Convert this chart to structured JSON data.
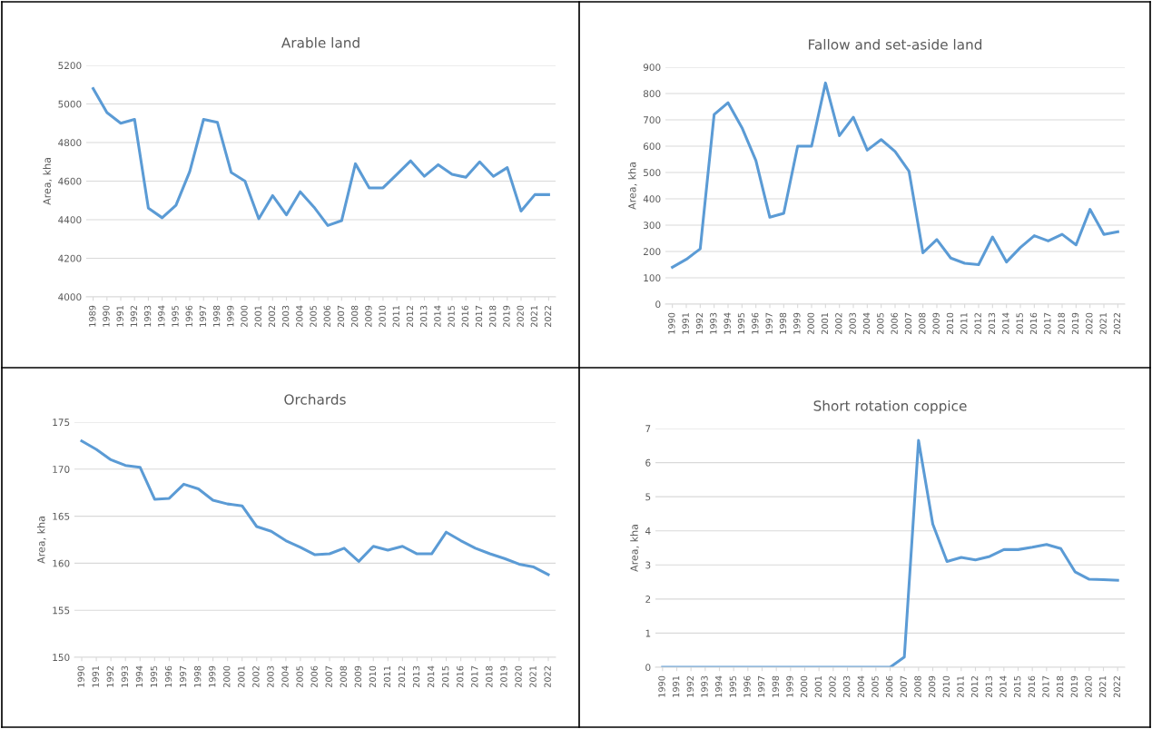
{
  "chart_data": [
    {
      "type": "line",
      "title": "Arable land",
      "ylabel": "Area, kha",
      "ylim": [
        4000,
        5200
      ],
      "yticks": [
        4000,
        4200,
        4400,
        4600,
        4800,
        5000,
        5200
      ],
      "grid": "y",
      "marker": "none",
      "line_style": "solid",
      "categories": [
        "1989",
        "1990",
        "1991",
        "1992",
        "1993",
        "1994",
        "1995",
        "1996",
        "1997",
        "1998",
        "1999",
        "2000",
        "2001",
        "2002",
        "2003",
        "2004",
        "2005",
        "2006",
        "2007",
        "2008",
        "2009",
        "2010",
        "2011",
        "2012",
        "2013",
        "2014",
        "2015",
        "2016",
        "2017",
        "2018",
        "2019",
        "2020",
        "2021",
        "2022"
      ],
      "series": [
        {
          "color": "#5b9bd5",
          "values": [
            5080,
            4955,
            4900,
            4920,
            4460,
            4410,
            4475,
            4650,
            4920,
            4905,
            4645,
            4600,
            4405,
            4525,
            4425,
            4545,
            4465,
            4370,
            4395,
            4690,
            4565,
            4565,
            4635,
            4705,
            4625,
            4685,
            4635,
            4620,
            4700,
            4625,
            4670,
            4445,
            4530,
            4530
          ]
        }
      ]
    },
    {
      "type": "line",
      "title": "Fallow and set-aside land",
      "ylabel": "Area, kha",
      "ylim": [
        0,
        900
      ],
      "yticks": [
        0,
        100,
        200,
        300,
        400,
        500,
        600,
        700,
        800,
        900
      ],
      "grid": "y",
      "marker": "none",
      "line_style": "solid",
      "categories": [
        "1990",
        "1991",
        "1992",
        "1993",
        "1994",
        "1995",
        "1996",
        "1997",
        "1998",
        "1999",
        "2000",
        "2001",
        "2002",
        "2003",
        "2004",
        "2005",
        "2006",
        "2007",
        "2008",
        "2009",
        "2010",
        "2011",
        "2012",
        "2013",
        "2014",
        "2015",
        "2016",
        "2017",
        "2018",
        "2019",
        "2020",
        "2021",
        "2022"
      ],
      "series": [
        {
          "color": "#5b9bd5",
          "values": [
            140,
            170,
            210,
            720,
            765,
            670,
            545,
            330,
            345,
            600,
            600,
            840,
            640,
            710,
            585,
            625,
            580,
            505,
            195,
            245,
            175,
            155,
            150,
            255,
            160,
            215,
            260,
            240,
            265,
            225,
            360,
            265,
            275
          ]
        }
      ]
    },
    {
      "type": "line",
      "title": "Orchards",
      "ylabel": "Area, kha",
      "ylim": [
        150,
        175
      ],
      "yticks": [
        150,
        155,
        160,
        165,
        170,
        175
      ],
      "grid": "y",
      "marker": "none",
      "line_style": "solid",
      "categories": [
        "1990",
        "1991",
        "1992",
        "1993",
        "1994",
        "1995",
        "1996",
        "1997",
        "1998",
        "1999",
        "2000",
        "2001",
        "2002",
        "2003",
        "2004",
        "2005",
        "2006",
        "2007",
        "2008",
        "2009",
        "2010",
        "2011",
        "2012",
        "2013",
        "2014",
        "2015",
        "2016",
        "2017",
        "2018",
        "2019",
        "2020",
        "2021",
        "2022"
      ],
      "series": [
        {
          "color": "#5b9bd5",
          "values": [
            173.0,
            172.1,
            171.0,
            170.4,
            170.2,
            166.8,
            166.9,
            168.4,
            167.9,
            166.7,
            166.3,
            166.1,
            163.9,
            163.4,
            162.4,
            161.7,
            160.9,
            161.0,
            161.6,
            160.2,
            161.8,
            161.4,
            161.8,
            161.0,
            161.0,
            163.3,
            162.4,
            161.6,
            161.0,
            160.5,
            159.9,
            159.6,
            158.8
          ]
        }
      ]
    },
    {
      "type": "line",
      "title": "Short rotation coppice",
      "ylabel": "Area, kha",
      "ylim": [
        0,
        7
      ],
      "yticks": [
        0,
        1,
        2,
        3,
        4,
        5,
        6,
        7
      ],
      "grid": "y",
      "marker": "none",
      "line_style": "solid",
      "categories": [
        "1990",
        "1991",
        "1992",
        "1993",
        "1994",
        "1995",
        "1996",
        "1997",
        "1998",
        "1999",
        "2000",
        "2001",
        "2002",
        "2003",
        "2004",
        "2005",
        "2006",
        "2007",
        "2008",
        "2009",
        "2010",
        "2011",
        "2012",
        "2013",
        "2014",
        "2015",
        "2016",
        "2017",
        "2018",
        "2019",
        "2020",
        "2021",
        "2022"
      ],
      "series": [
        {
          "color": "#5b9bd5",
          "values": [
            0,
            0,
            0,
            0,
            0,
            0,
            0,
            0,
            0,
            0,
            0,
            0,
            0,
            0,
            0,
            0,
            0,
            0.3,
            6.65,
            4.2,
            3.1,
            3.22,
            3.15,
            3.25,
            3.45,
            3.45,
            3.52,
            3.6,
            3.48,
            2.8,
            2.58,
            2.57,
            2.55
          ]
        }
      ]
    }
  ]
}
